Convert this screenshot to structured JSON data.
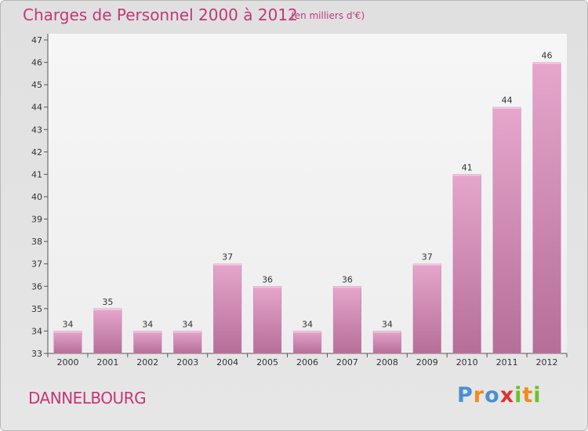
{
  "header": {
    "title": "Charges de Personnel 2000 à 2012",
    "subtitle": "(en milliers d'€)"
  },
  "footer": {
    "commune": "DANNELBOURG",
    "logo_letters": [
      "P",
      "r",
      "o",
      "x",
      "i",
      "t",
      "i"
    ],
    "logo_colors": [
      "#4a90d0",
      "#f08a1a",
      "#4a90d0",
      "#e23030",
      "#6cc02a",
      "#f08a1a",
      "#6cc02a"
    ]
  },
  "chart_data": {
    "type": "bar",
    "categories": [
      "2000",
      "2001",
      "2002",
      "2003",
      "2004",
      "2005",
      "2006",
      "2007",
      "2008",
      "2009",
      "2010",
      "2011",
      "2012"
    ],
    "values": [
      34,
      35,
      34,
      34,
      37,
      36,
      34,
      36,
      34,
      37,
      41,
      44,
      46
    ],
    "data_labels": [
      "34",
      "35",
      "34",
      "34",
      "37",
      "36",
      "34",
      "36",
      "34",
      "37",
      "41",
      "44",
      "46"
    ],
    "yticks": [
      "33",
      "34",
      "35",
      "36",
      "37",
      "38",
      "39",
      "40",
      "41",
      "42",
      "43",
      "44",
      "45",
      "46",
      "47"
    ],
    "ylim": [
      33,
      47
    ],
    "title": "Charges de Personnel 2000 à 2012",
    "xlabel": "",
    "ylabel": "",
    "grid": false,
    "bar_color": "#d68fb8",
    "text_color": "#c2377a"
  }
}
